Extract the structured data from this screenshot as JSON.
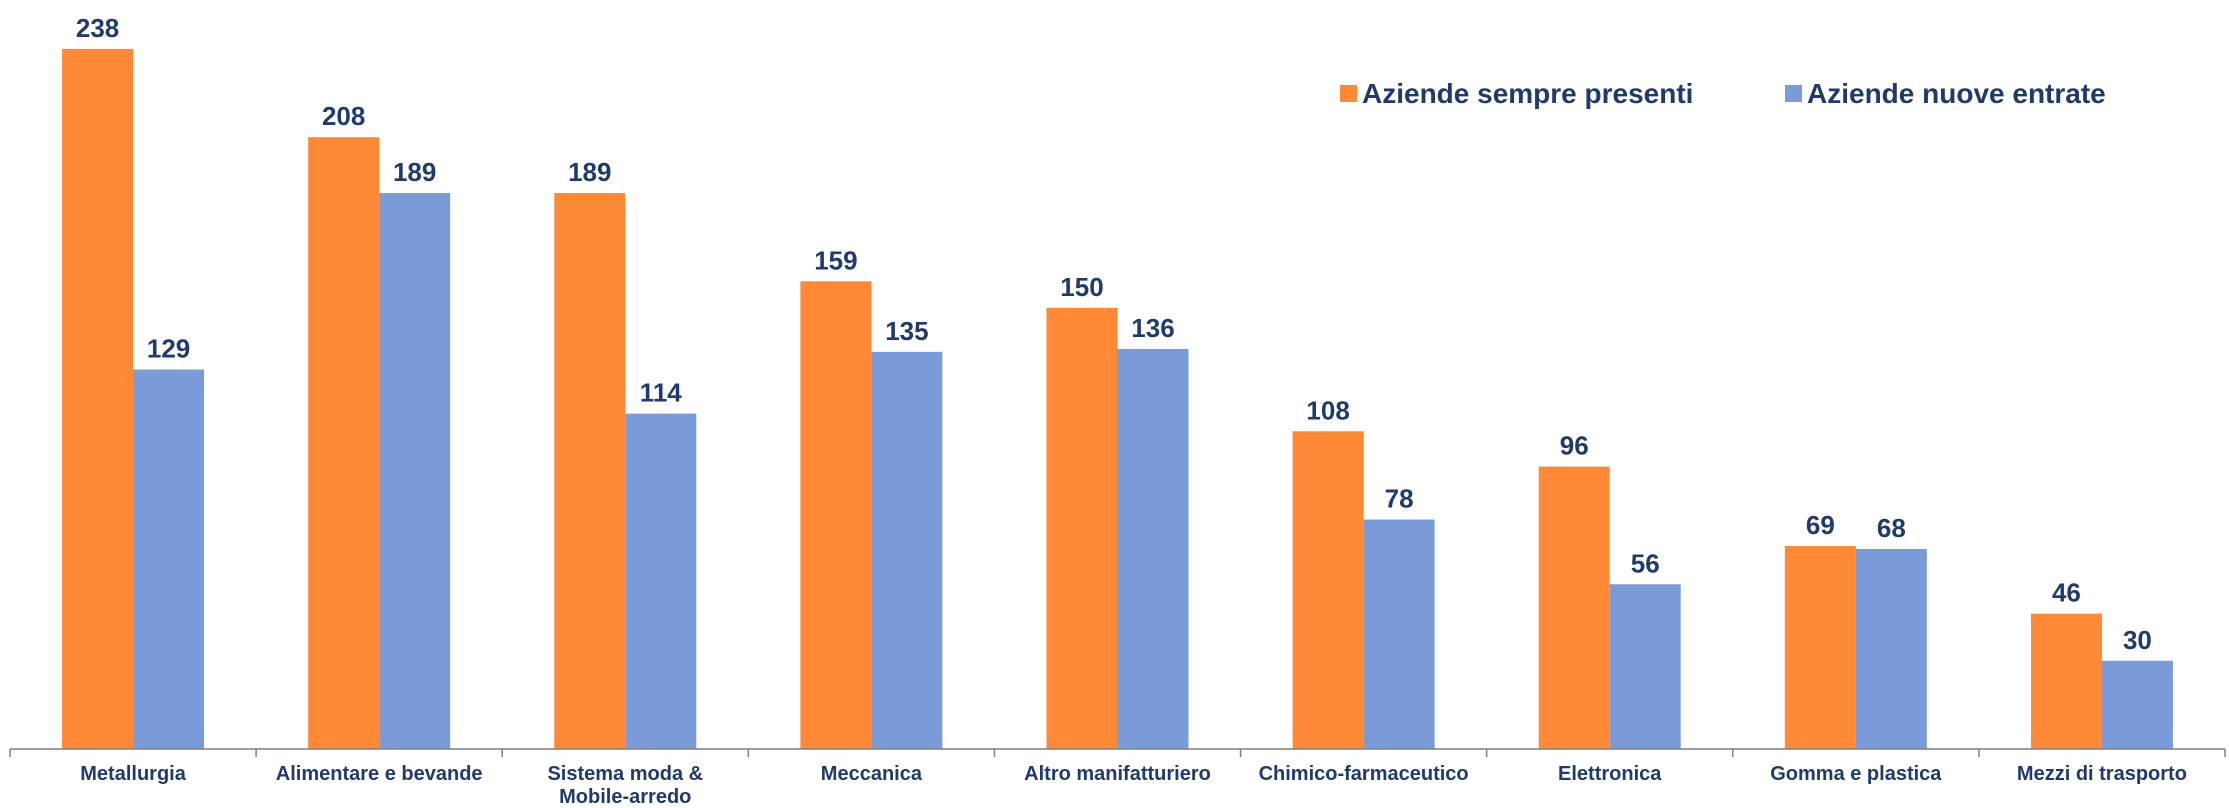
{
  "chart_data": {
    "type": "bar",
    "categories": [
      [
        "Metallurgia"
      ],
      [
        "Alimentare e bevande"
      ],
      [
        "Sistema moda &",
        "Mobile-arredo"
      ],
      [
        "Meccanica"
      ],
      [
        "Altro manifatturiero"
      ],
      [
        "Chimico-farmaceutico"
      ],
      [
        "Elettronica"
      ],
      [
        "Gomma e plastica"
      ],
      [
        "Mezzi di trasporto"
      ]
    ],
    "series": [
      {
        "name": "Aziende sempre presenti",
        "color": "#FF8936",
        "values": [
          238,
          208,
          189,
          159,
          150,
          108,
          96,
          69,
          46
        ]
      },
      {
        "name": "Aziende nuove entrate",
        "color": "#7A9AD8",
        "values": [
          129,
          189,
          114,
          135,
          136,
          78,
          56,
          68,
          30
        ]
      }
    ],
    "ylim": [
      0,
      240
    ],
    "grid": false,
    "legend_position": "top-right",
    "label_color": "#1F3A6B",
    "axis_color": "#7F7F7F"
  }
}
